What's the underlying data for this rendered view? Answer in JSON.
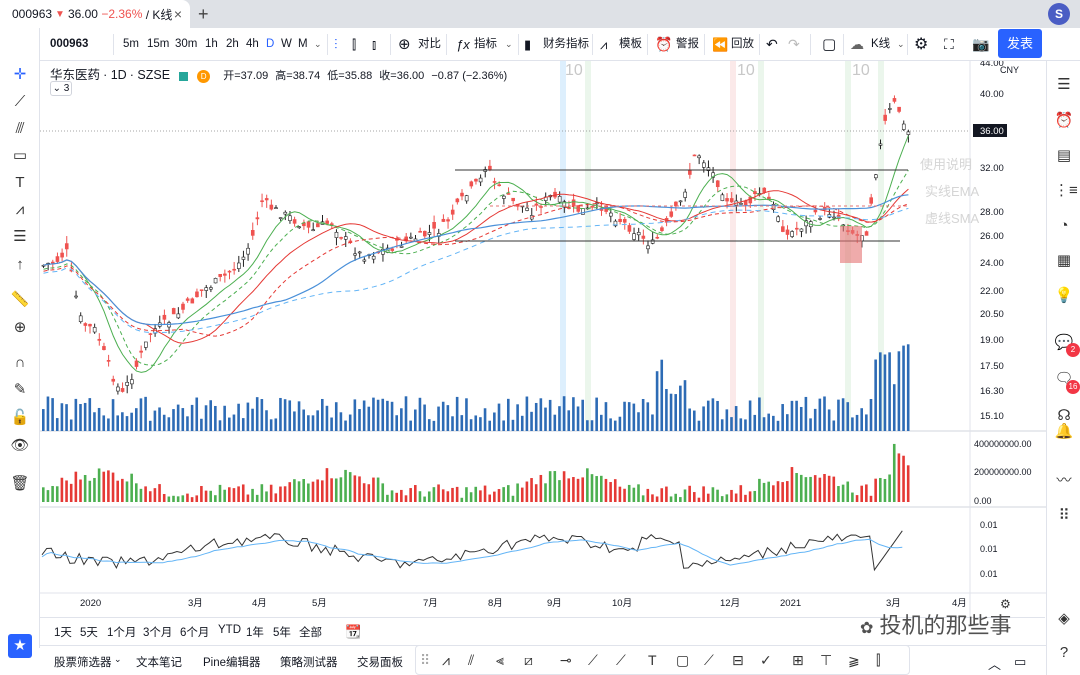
{
  "browser": {
    "tab_title": "000963",
    "tab_price": "36.00",
    "tab_change": "−2.36%",
    "tab_suffix": "/ K线",
    "close": "×",
    "new_tab": "+",
    "profile": "S"
  },
  "toolbar": {
    "symbol": "000963",
    "intervals": [
      "5m",
      "15m",
      "30m",
      "1h",
      "2h",
      "4h",
      "D",
      "W",
      "M"
    ],
    "active_interval": "D",
    "compare": "对比",
    "indicators": "指标",
    "financials": "财务指标",
    "templates": "模板",
    "alert": "警报",
    "replay": "回放",
    "chart_type": "K线",
    "publish": "发表"
  },
  "legend": {
    "name": "华东医药",
    "interval": "1D",
    "exchange": "SZSE",
    "open": "开=37.09",
    "high": "高=38.74",
    "low": "低=35.88",
    "close": "收=36.00",
    "change": "−0.87 (−2.36%)",
    "collapse_count": "3",
    "badge_d": "D"
  },
  "annotations": {
    "usage": "使用说明",
    "solid_ema": "实线EMA",
    "dashed_sma": "虚线SMA"
  },
  "price_axis": {
    "currency": "CNY",
    "labels": [
      "44.00",
      "40.00",
      "32.00",
      "28.00",
      "26.00",
      "24.00",
      "22.00",
      "20.50",
      "19.00",
      "17.50",
      "16.30",
      "15.10"
    ],
    "last_price": "36.00"
  },
  "volume_axis": {
    "labels": [
      "400000000.00",
      "200000000.00",
      "0.00"
    ]
  },
  "osc_axis": {
    "labels": [
      "0.01",
      "0.01",
      "0.01"
    ]
  },
  "time_axis": {
    "labels": [
      "2020",
      "3月",
      "4月",
      "5月",
      "7月",
      "8月",
      "9月",
      "10月",
      "12月",
      "2021",
      "3月",
      "4月"
    ]
  },
  "session_marks": [
    "10",
    "10",
    "10"
  ],
  "timeframes": [
    "1天",
    "5天",
    "1个月",
    "3个月",
    "6个月",
    "YTD",
    "1年",
    "5年",
    "全部"
  ],
  "bottom_tabs": [
    "股票筛选器",
    "文本笔记",
    "Pine编辑器",
    "策略测试器",
    "交易面板"
  ],
  "watermark_text": "投机的那些事",
  "badges": {
    "ideas": "2",
    "streams": "16"
  },
  "colors": {
    "up": "#26a69a",
    "down": "#ef5350",
    "volume_blue": "#2d6bb5",
    "vol_green": "#4caf50",
    "vol_red": "#e53935",
    "ema_fast": "#4caf50",
    "ema_slow": "#e53935",
    "ema_long": "#4a90d9",
    "accent": "#2962ff"
  }
}
